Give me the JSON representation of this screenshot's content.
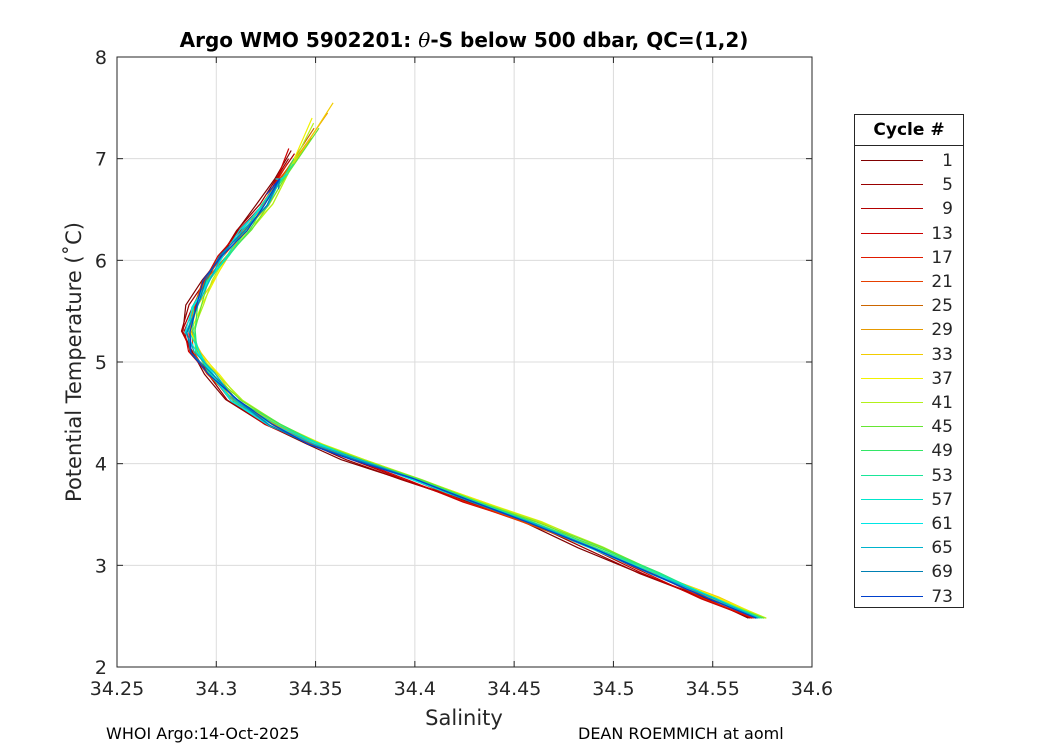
{
  "chart_data": {
    "type": "line",
    "title": "Argo WMO 5902201: θ-S below 500 dbar,  QC=(1,2)",
    "title_parts": {
      "pre": "Argo WMO 5902201: ",
      "theta": "θ",
      "post": "-S below 500 dbar,  QC=(1,2)"
    },
    "xlabel": "Salinity",
    "ylabel": "Potential Temperature (˚C)",
    "xlim": [
      34.25,
      34.6
    ],
    "ylim": [
      2,
      8
    ],
    "xticks": [
      "34.25",
      "34.3",
      "34.35",
      "34.4",
      "34.45",
      "34.5",
      "34.55",
      "34.6"
    ],
    "yticks": [
      "2",
      "3",
      "4",
      "5",
      "6",
      "7",
      "8"
    ],
    "grid": true,
    "legend": {
      "title": "Cycle #",
      "placement": "right-outside",
      "entries": [
        {
          "label": "1",
          "color": "#800000"
        },
        {
          "label": "5",
          "color": "#990000"
        },
        {
          "label": "9",
          "color": "#b30000"
        },
        {
          "label": "13",
          "color": "#cc0000"
        },
        {
          "label": "17",
          "color": "#e01a00"
        },
        {
          "label": "21",
          "color": "#e64000"
        },
        {
          "label": "25",
          "color": "#cc6600"
        },
        {
          "label": "29",
          "color": "#e69900"
        },
        {
          "label": "33",
          "color": "#f2cc00"
        },
        {
          "label": "37",
          "color": "#f2f200"
        },
        {
          "label": "41",
          "color": "#b3f01a"
        },
        {
          "label": "45",
          "color": "#66e633"
        },
        {
          "label": "49",
          "color": "#33e666"
        },
        {
          "label": "53",
          "color": "#1ae699"
        },
        {
          "label": "57",
          "color": "#00e6cc"
        },
        {
          "label": "61",
          "color": "#00e6e6"
        },
        {
          "label": "65",
          "color": "#00b3cc"
        },
        {
          "label": "69",
          "color": "#0080b3"
        },
        {
          "label": "73",
          "color": "#0040cc"
        }
      ]
    },
    "base_profile": {
      "salinity": [
        34.574,
        34.55,
        34.52,
        34.49,
        34.46,
        34.43,
        34.4,
        34.37,
        34.35,
        34.33,
        34.31,
        34.298,
        34.29,
        34.287,
        34.29,
        34.296,
        34.305,
        34.315,
        34.325,
        34.333
      ],
      "temperature": [
        2.48,
        2.68,
        2.93,
        3.18,
        3.42,
        3.63,
        3.85,
        4.05,
        4.2,
        4.38,
        4.62,
        4.88,
        5.1,
        5.3,
        5.55,
        5.8,
        6.05,
        6.3,
        6.55,
        6.8
      ]
    },
    "salinity_offsets": [
      -0.006,
      -0.005,
      -0.004,
      -0.004,
      -0.003,
      -0.002,
      -0.001,
      0.0,
      0.002,
      0.003,
      0.003,
      0.002,
      0.001,
      0.0,
      -0.001,
      -0.002,
      -0.001,
      -0.002,
      -0.002
    ],
    "top_temperatures": [
      7.08,
      7.0,
      7.05,
      7.1,
      6.95,
      7.2,
      7.3,
      7.45,
      7.55,
      7.4,
      7.35,
      7.3,
      7.0,
      6.95,
      6.85,
      6.8,
      6.75,
      6.7,
      6.65
    ]
  },
  "footer": {
    "left": "WHOI Argo:14-Oct-2025",
    "right": "DEAN ROEMMICH at aoml"
  }
}
